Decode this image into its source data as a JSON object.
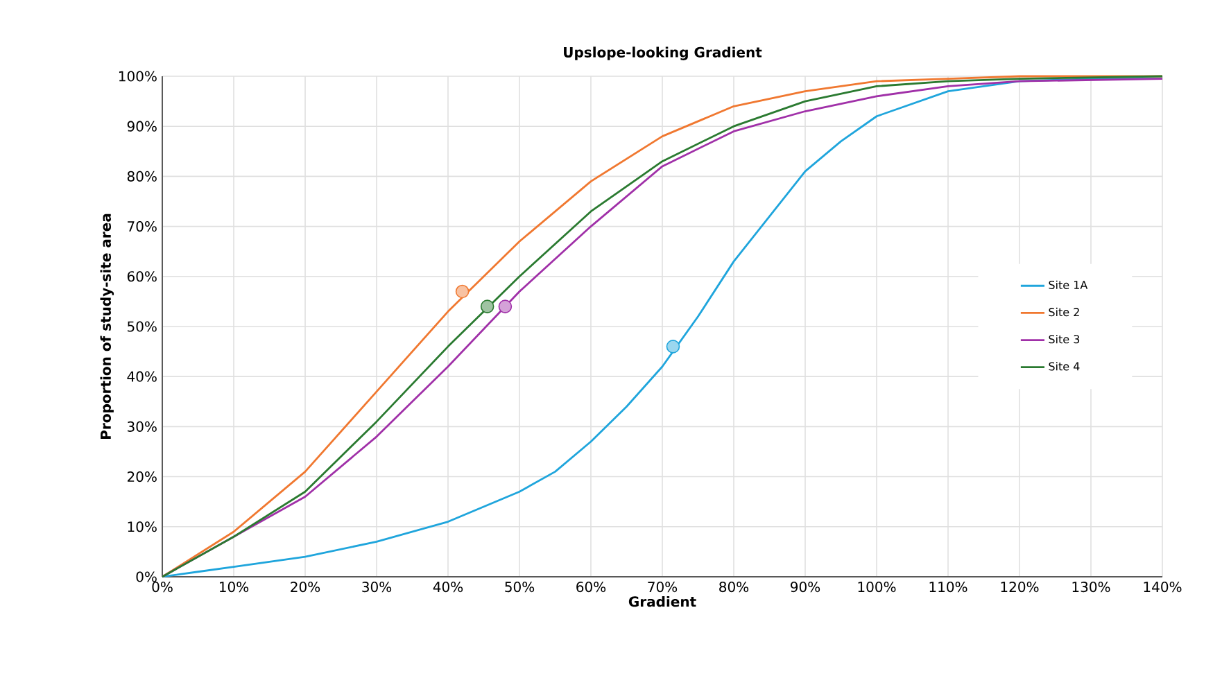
{
  "chart_data": {
    "type": "line",
    "title": "Upslope-looking Gradient",
    "xlabel": "Gradient",
    "ylabel": "Proportion of study-site area",
    "xlim": [
      0,
      140
    ],
    "ylim": [
      0,
      100
    ],
    "xticks": [
      {
        "value": 0,
        "label": "0%"
      },
      {
        "value": 10,
        "label": "10%"
      },
      {
        "value": 20,
        "label": "20%"
      },
      {
        "value": 30,
        "label": "30%"
      },
      {
        "value": 40,
        "label": "40%"
      },
      {
        "value": 50,
        "label": "50%"
      },
      {
        "value": 60,
        "label": "60%"
      },
      {
        "value": 70,
        "label": "70%"
      },
      {
        "value": 80,
        "label": "80%"
      },
      {
        "value": 90,
        "label": "90%"
      },
      {
        "value": 100,
        "label": "100%"
      },
      {
        "value": 110,
        "label": "110%"
      },
      {
        "value": 120,
        "label": "120%"
      },
      {
        "value": 130,
        "label": "130%"
      },
      {
        "value": 140,
        "label": "140%"
      }
    ],
    "yticks": [
      {
        "value": 0,
        "label": "0%"
      },
      {
        "value": 10,
        "label": "10%"
      },
      {
        "value": 20,
        "label": "20%"
      },
      {
        "value": 30,
        "label": "30%"
      },
      {
        "value": 40,
        "label": "40%"
      },
      {
        "value": 50,
        "label": "50%"
      },
      {
        "value": 60,
        "label": "60%"
      },
      {
        "value": 70,
        "label": "70%"
      },
      {
        "value": 80,
        "label": "80%"
      },
      {
        "value": 90,
        "label": "90%"
      },
      {
        "value": 100,
        "label": "100%"
      }
    ],
    "grid": true,
    "legend": "right",
    "line_style": "solid",
    "series": [
      {
        "name": "Site 1A",
        "color": "#1fa5dc",
        "x": [
          0,
          5,
          10,
          20,
          30,
          40,
          50,
          55,
          60,
          65,
          70,
          75,
          80,
          85,
          90,
          95,
          100,
          110,
          120,
          130,
          140
        ],
        "values": [
          0,
          1,
          2,
          4,
          7,
          11,
          17,
          21,
          27,
          34,
          42,
          52,
          63,
          72,
          81,
          87,
          92,
          97,
          99,
          99.5,
          99.5
        ]
      },
      {
        "name": "Site 2",
        "color": "#f07830",
        "x": [
          0,
          10,
          20,
          30,
          40,
          50,
          60,
          70,
          80,
          90,
          100,
          110,
          120,
          140
        ],
        "values": [
          0,
          9,
          21,
          37,
          53,
          67,
          79,
          88,
          94,
          97,
          99,
          99.5,
          100,
          100
        ]
      },
      {
        "name": "Site 3",
        "color": "#a030a8",
        "x": [
          0,
          10,
          20,
          30,
          40,
          50,
          60,
          70,
          80,
          90,
          100,
          110,
          120,
          140
        ],
        "values": [
          0,
          8,
          16,
          28,
          42,
          57,
          70,
          82,
          89,
          93,
          96,
          98,
          99,
          99.5
        ]
      },
      {
        "name": "Site 4",
        "color": "#2a7a30",
        "x": [
          0,
          10,
          20,
          30,
          40,
          50,
          60,
          70,
          80,
          90,
          100,
          110,
          120,
          140
        ],
        "values": [
          0,
          8,
          17,
          31,
          46,
          60,
          73,
          83,
          90,
          95,
          98,
          99,
          99.5,
          100
        ]
      },
      {
        "type": "scatter",
        "marker": "circle",
        "x": [
          71.5,
          42,
          45.5,
          48
        ],
        "values": [
          46,
          57,
          54,
          54
        ],
        "colors": [
          "#1fa5dc",
          "#f07830",
          "#2a7a30",
          "#a030a8"
        ]
      }
    ]
  }
}
